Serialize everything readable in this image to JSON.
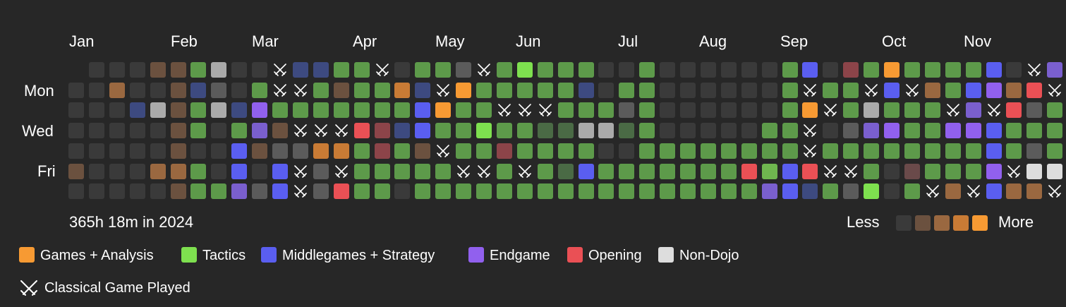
{
  "months": [
    "Jan",
    "Feb",
    "Mar",
    "Apr",
    "May",
    "Jun",
    "Jul",
    "Aug",
    "Sep",
    "Oct",
    "Nov"
  ],
  "days": [
    "Mon",
    "Wed",
    "Fri"
  ],
  "summary": "365h 18m in 2024",
  "scale": {
    "less": "Less",
    "more": "More",
    "colors": [
      "#3a3a3a",
      "#6b513f",
      "#9a6840",
      "#c97b35",
      "#f79a33"
    ]
  },
  "legend": [
    {
      "label": "Games + Analysis",
      "color": "#f79a33"
    },
    {
      "label": "Tactics",
      "color": "#7ee04f"
    },
    {
      "label": "Middlegames + Strategy",
      "color": "#5a5ef0"
    },
    {
      "label": "Endgame",
      "color": "#9160ee"
    },
    {
      "label": "Opening",
      "color": "#ea5055"
    },
    {
      "label": "Non-Dojo",
      "color": "#dddddd"
    }
  ],
  "classical_label": "Classical Game Played",
  "palette": {
    "0": "#3a3a3a",
    "b": "#6b513f",
    "B": "#9a6840",
    "g": "#4a6a45",
    "G": "#5d9a4a",
    "L": "#6fb64f",
    "T": "#7ee04f",
    "o": "#c97b35",
    "O": "#f79a33",
    "n": "#3d4a80",
    "N": "#5a5ef0",
    "p": "#9160ee",
    "P": "#7a5fce",
    "r": "#8c4449",
    "R": "#ea5055",
    "w": "#aaaaaa",
    "W": "#dddddd",
    "s": "#5b5b5b",
    "m": "#6a4a4a",
    "x": "game"
  },
  "weeks": [
    ".0000b00wB",
    "0000000000",
    "0B00000000",
    "00n000000b",
    "b0w00B0000",
    "bbbbbBbbbG",
    "GnGG0GG0GG",
    "wsw000GGGG",
    "00nGNNPPPP",
    "0GpPb0ssPs",
    "xxGbsNNwss",
    "nxGxsxxxRs",
    "nGGxossxRs",
    "GbGxoxRxGn",
    "GGGRGGGGbx",
    "xGGrrGGGGG",
    "0oGnGG0Ggn",
    "GnNNbGGGGG",
    "GxOGxGGGGN",
    "sOGGGxGGTT",
    "xGGTGxGTTG",
    "GGxGrGGGGG",
    "TGxGGxGGGN",
    "GGxgGGGGGT",
    "GGGgGgGgGT",
    "GnGwGNGTTT",
    "00Gw0GGG0G",
    "0Gsg0GGGGG",
    "GGGGGGGGGG",
    "0000GGGGg0",
    "0000GGGG0G",
    "0000GGGGGG",
    "0000GGGGGG",
    "0000GRGGGG",
    "000GGLPGGG",
    "GGGGGNNnGG",
    "NxOxxRnGNN",
    "0Gx0GxGGxN",
    "rGGsGxsGwG",
    "GxwPGGTxGL",
    "ONGpG00xsO",
    "GxGGGmGBGG",
    "GBGGGGxxGG",
    "GGxpGGBGGG",
    "GNPpGGxG NN",
    "NpxNNpNpPN",
    "0BRGGxBGGp",
    "xRsGsWBGGG",
    "PxGGGWxGxx",
    "0mxGGxxGGp"
  ]
}
